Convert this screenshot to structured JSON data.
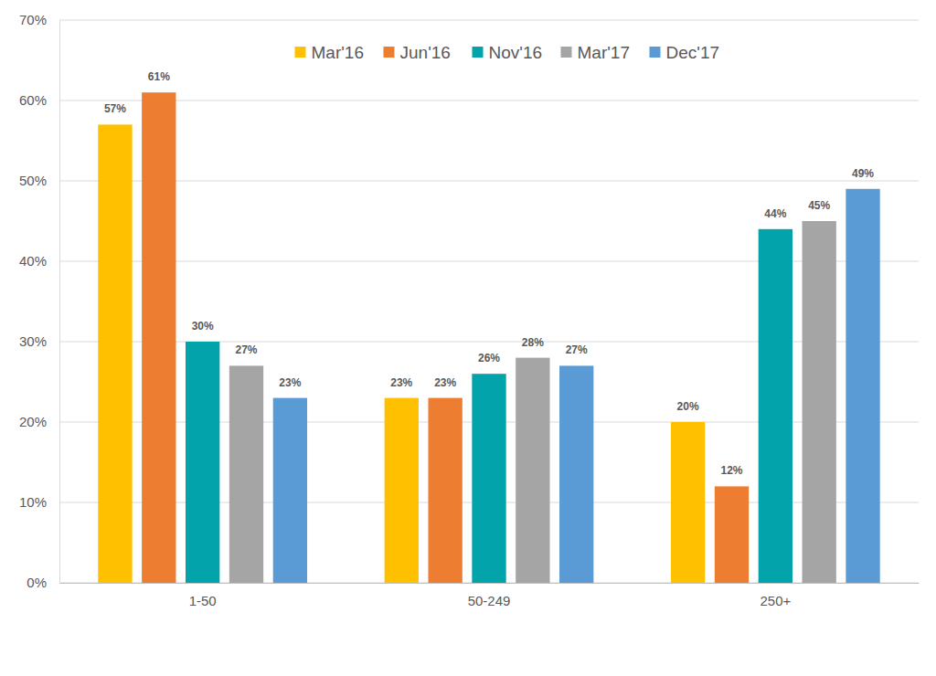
{
  "chart_data": {
    "type": "bar",
    "categories": [
      "1-50",
      "50-249",
      "250+"
    ],
    "series": [
      {
        "name": "Mar'16",
        "color": "#FFC000",
        "values": [
          57,
          23,
          20
        ],
        "value_labels": [
          "57%",
          "23%",
          "20%"
        ]
      },
      {
        "name": "Jun'16",
        "color": "#ED7D31",
        "values": [
          61,
          23,
          12
        ],
        "value_labels": [
          "61%",
          "23%",
          "12%"
        ]
      },
      {
        "name": "Nov'16",
        "color": "#03A3AC",
        "values": [
          30,
          26,
          44
        ],
        "value_labels": [
          "30%",
          "26%",
          "44%"
        ]
      },
      {
        "name": "Mar'17",
        "color": "#A5A5A5",
        "values": [
          27,
          28,
          45
        ],
        "value_labels": [
          "27%",
          "28%",
          "45%"
        ]
      },
      {
        "name": "Dec'17",
        "color": "#5B9BD5",
        "values": [
          23,
          27,
          49
        ],
        "value_labels": [
          "23%",
          "27%",
          "49%"
        ]
      }
    ],
    "ylim": [
      0,
      70
    ],
    "yticks": [
      {
        "value": 0,
        "label": "0%"
      },
      {
        "value": 10,
        "label": "10%"
      },
      {
        "value": 20,
        "label": "20%"
      },
      {
        "value": 30,
        "label": "30%"
      },
      {
        "value": 40,
        "label": "40%"
      },
      {
        "value": 50,
        "label": "50%"
      },
      {
        "value": 60,
        "label": "60%"
      },
      {
        "value": 70,
        "label": "70%"
      }
    ],
    "grid": true,
    "legend": "top",
    "data_labels": true
  }
}
